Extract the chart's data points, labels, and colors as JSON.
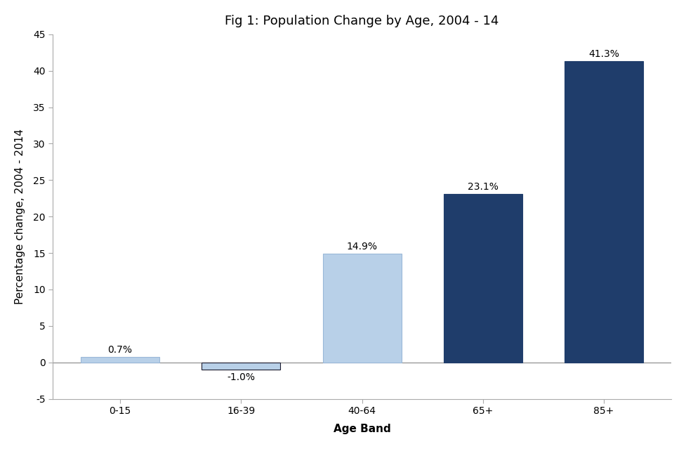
{
  "categories": [
    "0-15",
    "16-39",
    "40-64",
    "65+",
    "85+"
  ],
  "values": [
    0.7,
    -1.0,
    14.9,
    23.1,
    41.3
  ],
  "bar_colors": [
    "#b8d0e8",
    "#b8d0e8",
    "#b8d0e8",
    "#1f3d6b",
    "#1f3d6b"
  ],
  "bar_edge_colors": [
    "#9ab8d8",
    "#1a1a2e",
    "#9ab8d8",
    "#1f3d6b",
    "#1f3d6b"
  ],
  "labels": [
    "0.7%",
    "-1.0%",
    "14.9%",
    "23.1%",
    "41.3%"
  ],
  "title": "Fig 1: Population Change by Age, 2004 - 14",
  "xlabel": "Age Band",
  "ylabel": "Percentage change, 2004 - 2014",
  "ylim": [
    -5,
    45
  ],
  "yticks": [
    -5,
    0,
    5,
    10,
    15,
    20,
    25,
    30,
    35,
    40,
    45
  ],
  "background_color": "#ffffff",
  "title_fontsize": 13,
  "label_fontsize": 11,
  "tick_fontsize": 10,
  "bar_width": 0.65
}
